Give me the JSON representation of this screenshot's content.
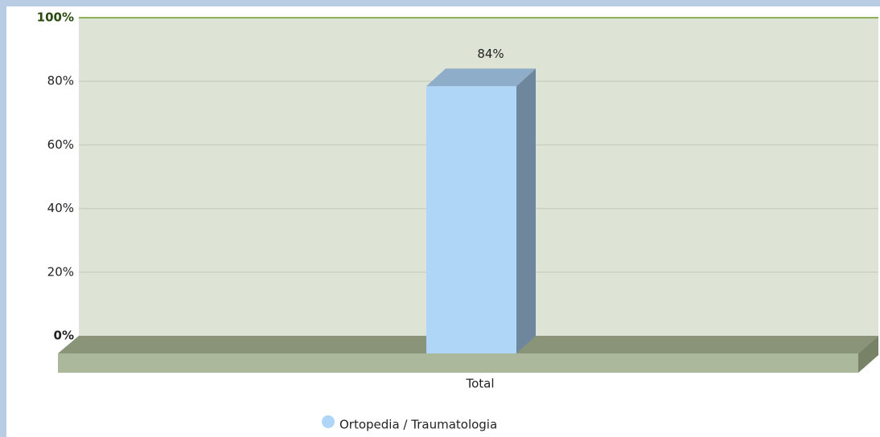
{
  "chart_data": {
    "type": "bar3d",
    "categories": [
      "Total"
    ],
    "series": [
      {
        "name": "Ortopedia / Traumatologia",
        "color": "#afd6f7",
        "values": [
          84
        ],
        "value_labels": [
          "84%"
        ]
      }
    ],
    "ylim": [
      0,
      100
    ],
    "yticks": [
      {
        "value": 0,
        "label": "0%"
      },
      {
        "value": 20,
        "label": "20%"
      },
      {
        "value": 40,
        "label": "40%"
      },
      {
        "value": 60,
        "label": "60%"
      },
      {
        "value": 80,
        "label": "80%"
      },
      {
        "value": 100,
        "label": "100%"
      }
    ],
    "grid": true,
    "legend": "bottom"
  }
}
